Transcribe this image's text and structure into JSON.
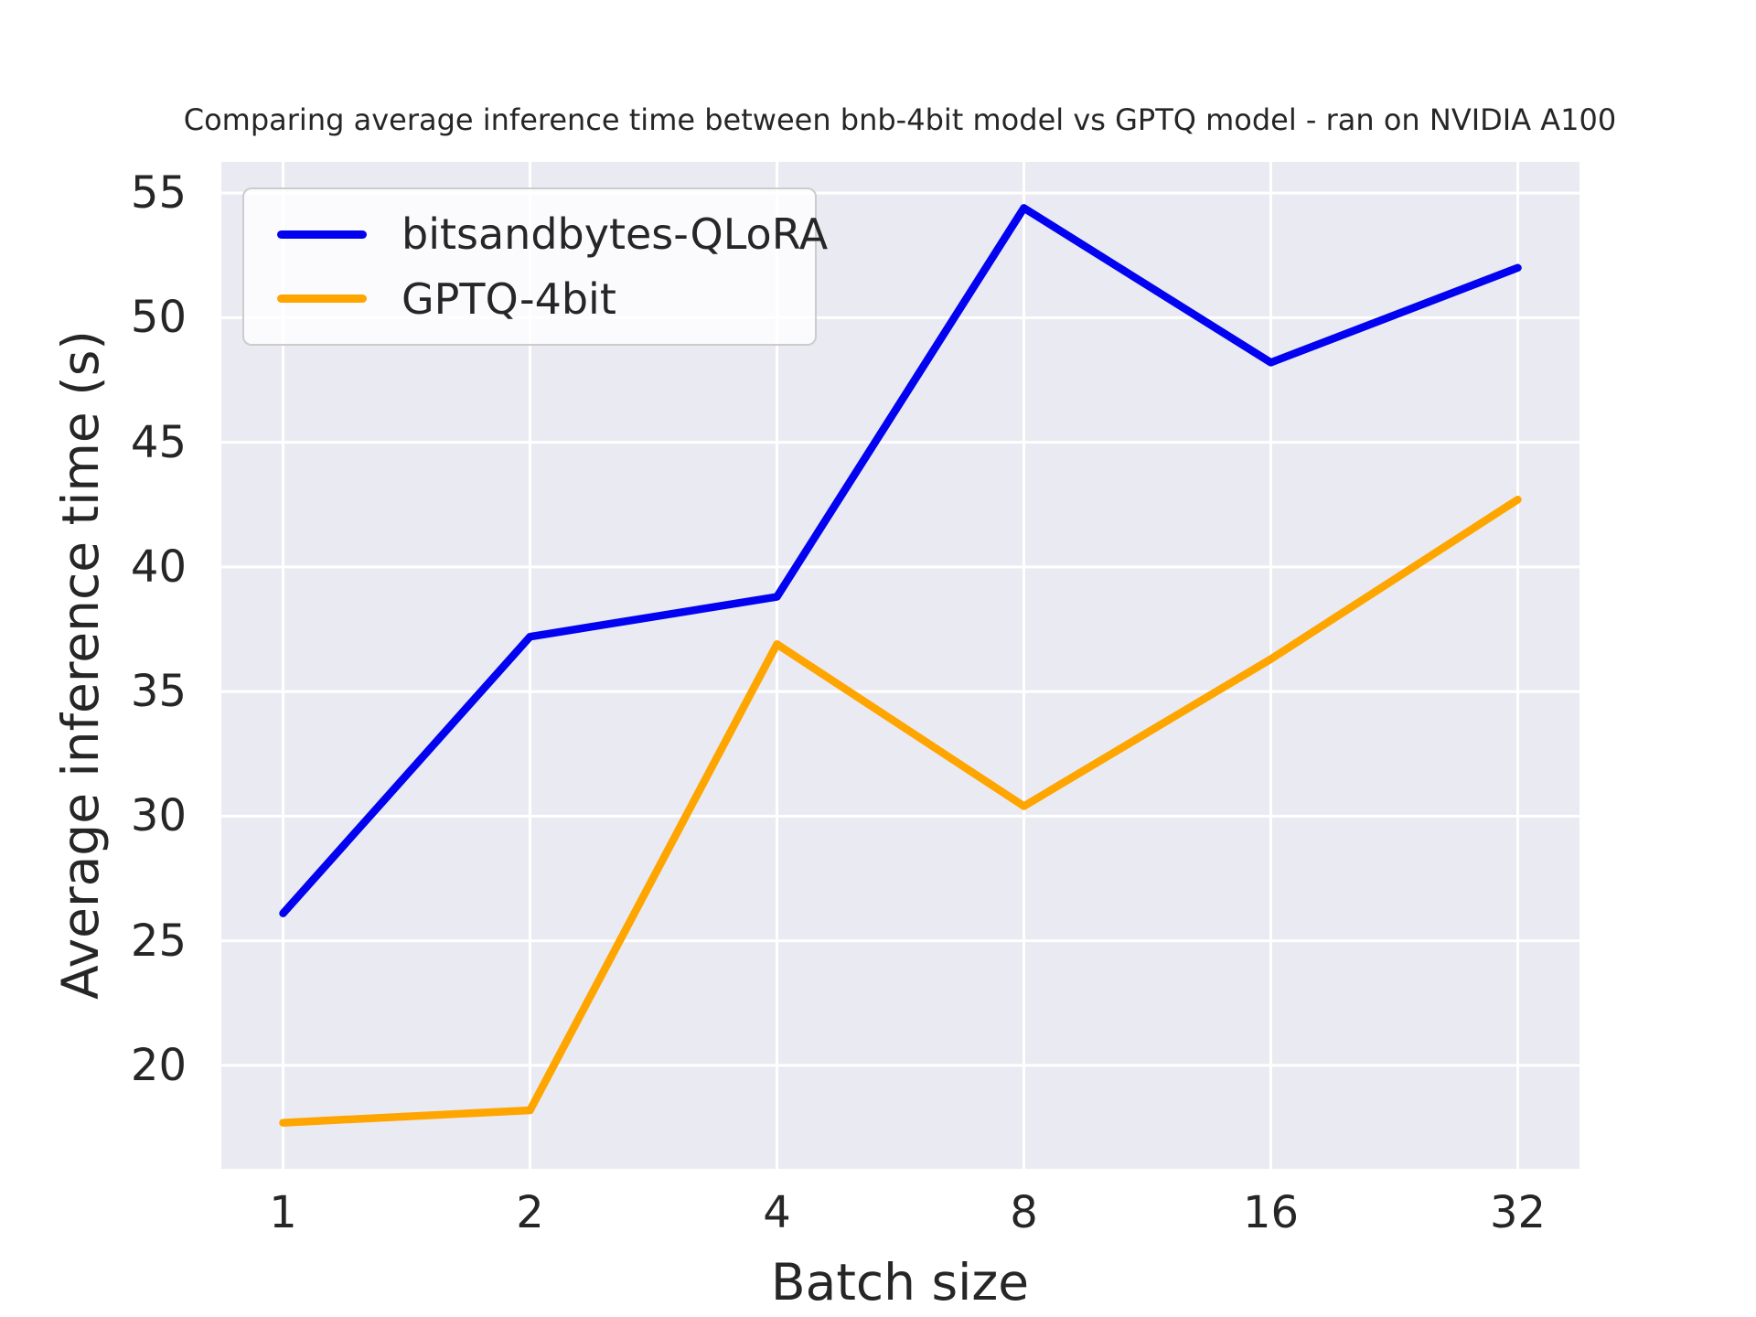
{
  "chart_data": {
    "type": "line",
    "title": "Comparing average inference time between bnb-4bit model vs GPTQ model - ran on NVIDIA A100",
    "xlabel": "Batch size",
    "ylabel": "Average inference time (s)",
    "x": [
      1,
      2,
      4,
      8,
      16,
      32
    ],
    "x_scale": "log2",
    "series": [
      {
        "name": "bitsandbytes-QLoRA",
        "color": "#0202f0",
        "values": [
          26.1,
          37.2,
          38.8,
          54.4,
          48.2,
          52.0
        ]
      },
      {
        "name": "GPTQ-4bit",
        "color": "#ffa500",
        "values": [
          17.7,
          18.2,
          36.9,
          30.4,
          36.3,
          42.7
        ]
      }
    ],
    "xticks": [
      1,
      2,
      4,
      8,
      16,
      32
    ],
    "yticks": [
      20,
      25,
      30,
      35,
      40,
      45,
      50,
      55
    ],
    "xlim_log2": [
      -0.25,
      5.25
    ],
    "ylim": [
      15.85,
      56.25
    ],
    "grid": true,
    "legend_position": "upper left",
    "colors": {
      "figure_bg": "#ffffff",
      "plot_bg": "#eaeaf2",
      "grid": "#ffffff",
      "text": "#262626"
    }
  }
}
